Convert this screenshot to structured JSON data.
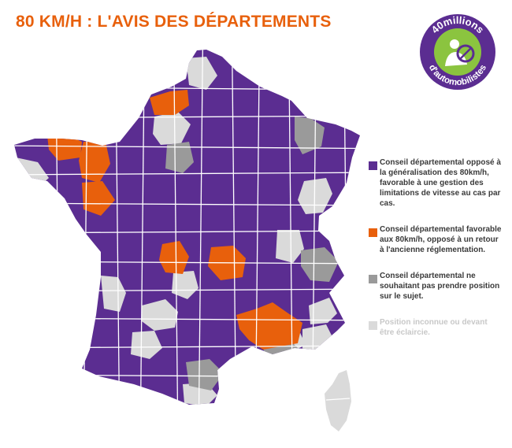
{
  "title": "80 KM/H : L'AVIS DES DÉPARTEMENTS",
  "logo": {
    "top_text": "40millions",
    "bottom_text": "d'automobilistes",
    "icon": "driver-steering-wheel-icon",
    "ring_color": "#5b2d91",
    "inner_color": "#8bc43f"
  },
  "colors": {
    "opposed": "#5b2d91",
    "favorable": "#e8600c",
    "no_position": "#9a9a9a",
    "unknown": "#dadada",
    "border": "#ffffff"
  },
  "legend": [
    {
      "key": "opposed",
      "text": "Conseil départemental opposé à la généralisation des 80km/h, favorable à une gestion des limitations de vitesse au cas par cas."
    },
    {
      "key": "favorable",
      "text": "Conseil départemental favorable aux 80km/h, opposé à un retour à l'ancienne réglementation."
    },
    {
      "key": "no_position",
      "text": "Conseil départemental ne souhaitant pas prendre position sur le sujet."
    },
    {
      "key": "unknown",
      "text": "Position inconnue ou devant être éclaircie."
    }
  ]
}
